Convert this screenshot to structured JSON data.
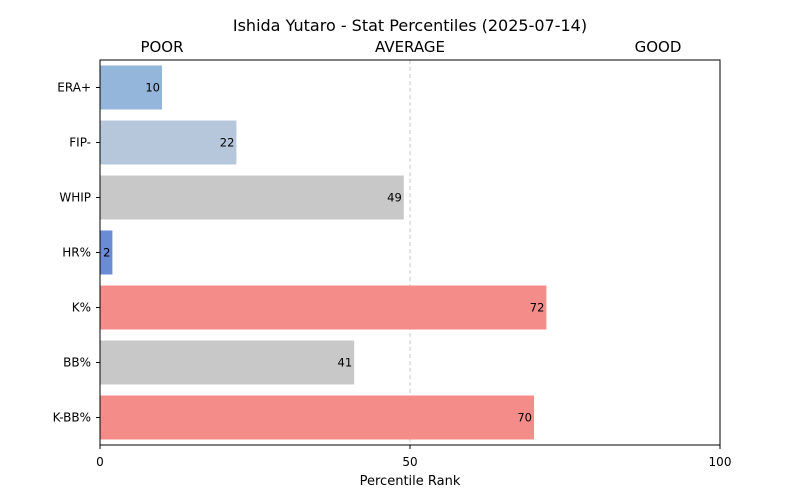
{
  "chart_data": {
    "type": "bar",
    "orientation": "horizontal",
    "title": "Ishida Yutaro - Stat Percentiles (2025-07-14)",
    "xlabel": "Percentile Rank",
    "ylabel": "",
    "xlim": [
      0,
      100
    ],
    "xticks": [
      "0",
      "50",
      "100"
    ],
    "zone_labels": [
      "POOR",
      "AVERAGE",
      "GOOD"
    ],
    "reference_line": 50,
    "categories": [
      "ERA+",
      "FIP-",
      "WHIP",
      "HR%",
      "K%",
      "BB%",
      "K-BB%"
    ],
    "values": [
      10,
      22,
      49,
      2,
      72,
      41,
      70
    ],
    "data_labels": [
      "10",
      "22",
      "49",
      "2",
      "72",
      "41",
      "70"
    ],
    "bar_colors": [
      "#94b6da",
      "#b6c7dc",
      "#c8c8c8",
      "#6b8bd4",
      "#f48c8a",
      "#c8c8c8",
      "#f48c8a"
    ],
    "grid": false
  }
}
